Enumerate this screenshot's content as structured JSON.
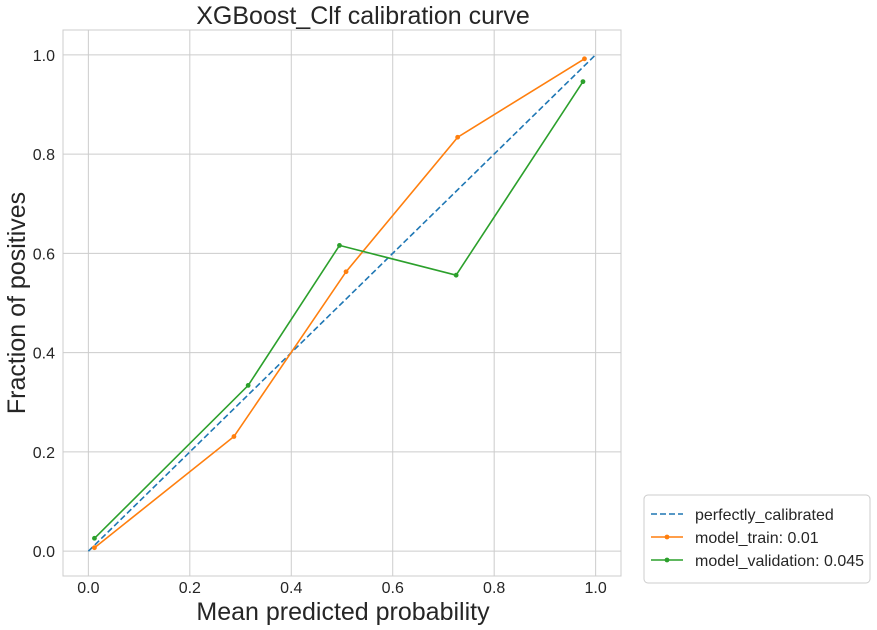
{
  "chart_data": {
    "type": "line",
    "title": "XGBoost_Clf calibration curve",
    "xlabel": "Mean predicted probability",
    "ylabel": "Fraction of positives",
    "xlim": [
      -0.05,
      1.05
    ],
    "ylim": [
      -0.05,
      1.05
    ],
    "xticks": [
      "0.0",
      "0.2",
      "0.4",
      "0.6",
      "0.8",
      "1.0"
    ],
    "yticks": [
      "0.0",
      "0.2",
      "0.4",
      "0.6",
      "0.8",
      "1.0"
    ],
    "grid": true,
    "legend_position": "outside lower-right",
    "series": [
      {
        "name": "perfectly_calibrated",
        "color": "#1f77b4",
        "style": "dashed",
        "marker": "none",
        "x": [
          0,
          1
        ],
        "y": [
          0,
          1
        ]
      },
      {
        "name": "model_train: 0.01",
        "color": "#ff7f0e",
        "style": "solid",
        "marker": "dot",
        "x": [
          0.012,
          0.287,
          0.508,
          0.728,
          0.978
        ],
        "y": [
          0.007,
          0.231,
          0.563,
          0.834,
          0.992
        ]
      },
      {
        "name": "model_validation: 0.045",
        "color": "#2ca02c",
        "style": "solid",
        "marker": "dot",
        "x": [
          0.012,
          0.315,
          0.495,
          0.725,
          0.975
        ],
        "y": [
          0.026,
          0.334,
          0.616,
          0.556,
          0.946
        ]
      }
    ]
  }
}
